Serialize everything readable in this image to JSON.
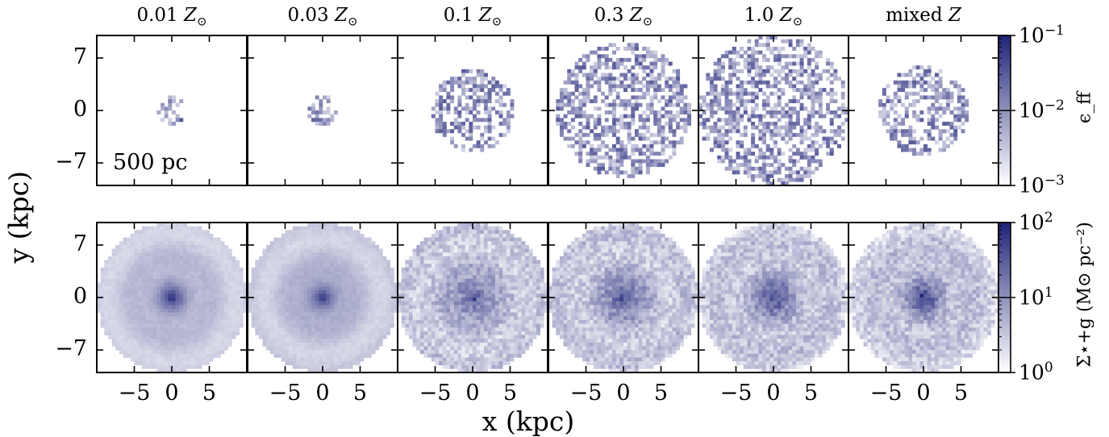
{
  "chart_data": {
    "type": "heatmap",
    "panel_titles": [
      {
        "value": "0.01",
        "symbol": "Z",
        "sub": "⊙"
      },
      {
        "value": "0.03",
        "symbol": "Z",
        "sub": "⊙"
      },
      {
        "value": "0.1",
        "symbol": "Z",
        "sub": "⊙"
      },
      {
        "value": "0.3",
        "symbol": "Z",
        "sub": "⊙"
      },
      {
        "value": "1.0",
        "symbol": "Z",
        "sub": "⊙"
      },
      {
        "value": "mixed",
        "symbol": "Z",
        "sub": ""
      }
    ],
    "annotation": "500 pc",
    "xlabel": "x (kpc)",
    "ylabel": "y (kpc)",
    "xticks": [
      "−5",
      "0",
      "5"
    ],
    "yticks": [
      "7",
      "0",
      "−7"
    ],
    "x_tick_values": [
      -5,
      0,
      5
    ],
    "y_tick_values": [
      7,
      0,
      -7
    ],
    "xlim": [
      -10,
      10
    ],
    "ylim": [
      -10,
      10
    ],
    "rows": [
      {
        "quantity": "eff",
        "colorbar_label": "ϵ_ff",
        "colorbar_ticks": [
          {
            "base": "10",
            "exp": "−1",
            "value": 0.1
          },
          {
            "base": "10",
            "exp": "−2",
            "value": 0.01
          },
          {
            "base": "10",
            "exp": "−3",
            "value": 0.001
          }
        ],
        "scale": "log",
        "range": [
          0.001,
          0.1
        ],
        "extent_kpc": [
          1.8,
          2.0,
          5.5,
          9.0,
          10.0,
          6.0
        ]
      },
      {
        "quantity": "surface_density",
        "colorbar_label": "Σ⋆+g (M⊙ pc⁻²)",
        "colorbar_ticks": [
          {
            "base": "10",
            "exp": "2",
            "value": 100
          },
          {
            "base": "10",
            "exp": "1",
            "value": 10
          },
          {
            "base": "10",
            "exp": "0",
            "value": 1
          }
        ],
        "scale": "log",
        "range": [
          1,
          100
        ],
        "extent_kpc": [
          10.0,
          10.0,
          10.0,
          10.0,
          10.0,
          10.0
        ]
      }
    ],
    "colormap": [
      "#ffffff",
      "#202478"
    ]
  }
}
